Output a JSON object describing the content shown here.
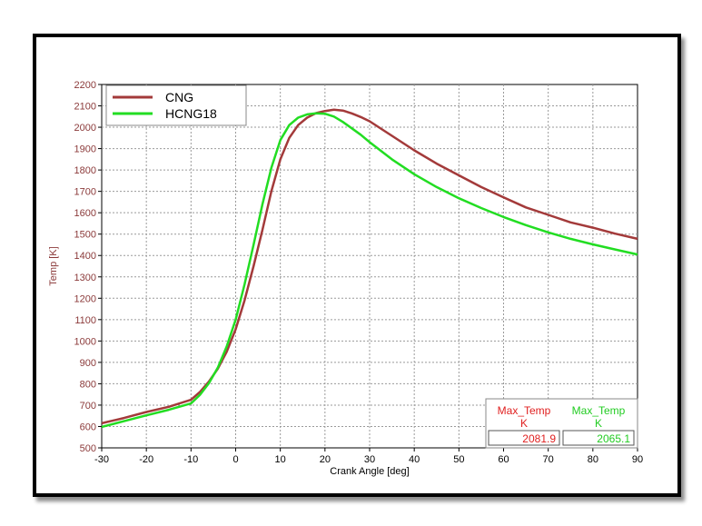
{
  "chart_data": {
    "type": "line",
    "xlabel": "Crank Angle [deg]",
    "ylabel": "Temp [K]",
    "xlim": [
      -30,
      90
    ],
    "ylim": [
      500,
      2200
    ],
    "xticks": [
      -30,
      -20,
      -10,
      0,
      10,
      20,
      30,
      40,
      50,
      60,
      70,
      80,
      90
    ],
    "yticks": [
      500,
      600,
      700,
      800,
      900,
      1000,
      1100,
      1200,
      1300,
      1400,
      1500,
      1600,
      1700,
      1800,
      1900,
      2000,
      2100,
      2200
    ],
    "grid": true,
    "legend": "top-left",
    "series": [
      {
        "name": "CNG",
        "color": "#a33a3a",
        "x": [
          -30,
          -25,
          -20,
          -15,
          -10,
          -8,
          -6,
          -4,
          -2,
          0,
          2,
          4,
          6,
          8,
          10,
          12,
          14,
          16,
          18,
          20,
          22,
          24,
          26,
          28,
          30,
          35,
          40,
          45,
          50,
          55,
          60,
          65,
          70,
          75,
          80,
          85,
          90
        ],
        "y": [
          615,
          640,
          668,
          692,
          725,
          762,
          810,
          870,
          950,
          1055,
          1190,
          1350,
          1520,
          1700,
          1850,
          1950,
          2010,
          2045,
          2066,
          2076,
          2082,
          2078,
          2065,
          2048,
          2028,
          1960,
          1892,
          1830,
          1775,
          1720,
          1672,
          1625,
          1590,
          1555,
          1530,
          1502,
          1478
        ]
      },
      {
        "name": "HCNG18",
        "color": "#22dd22",
        "x": [
          -30,
          -25,
          -20,
          -15,
          -10,
          -8,
          -6,
          -4,
          -2,
          0,
          2,
          4,
          6,
          8,
          10,
          12,
          14,
          16,
          18,
          20,
          22,
          24,
          26,
          28,
          30,
          35,
          40,
          45,
          50,
          55,
          60,
          65,
          70,
          75,
          80,
          85,
          90
        ],
        "y": [
          598,
          625,
          652,
          678,
          708,
          748,
          802,
          875,
          975,
          1100,
          1265,
          1450,
          1640,
          1810,
          1940,
          2010,
          2045,
          2060,
          2065,
          2063,
          2050,
          2025,
          1995,
          1965,
          1930,
          1850,
          1780,
          1720,
          1668,
          1622,
          1580,
          1542,
          1508,
          1478,
          1452,
          1428,
          1405
        ]
      }
    ],
    "readouts": [
      {
        "name": "Max_Temp",
        "unit": "K",
        "value": "2081.9",
        "color": "#e02020"
      },
      {
        "name": "Max_Temp",
        "unit": "K",
        "value": "2065.1",
        "color": "#22cc22"
      }
    ]
  }
}
